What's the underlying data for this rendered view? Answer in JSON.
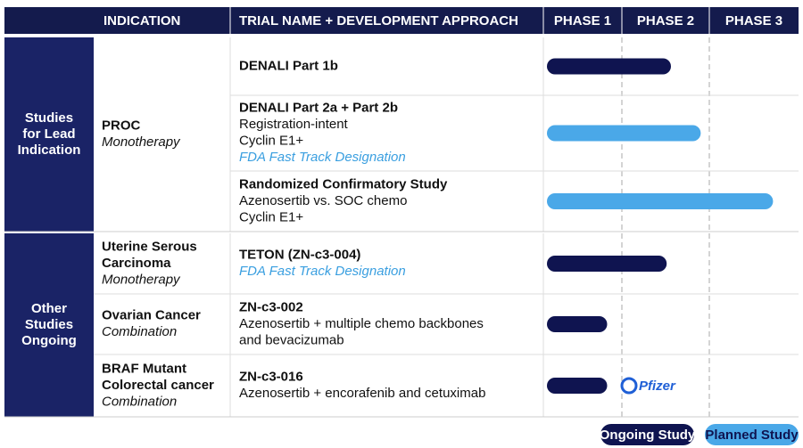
{
  "header": {
    "columns": [
      "INDICATION",
      "TRIAL NAME + DEVELOPMENT APPROACH",
      "PHASE 1",
      "PHASE 2",
      "PHASE 3"
    ]
  },
  "status_colors": {
    "ongoing": "#0f1450",
    "planned": "#4aa8e8"
  },
  "groups": [
    {
      "label": [
        "Studies",
        "for Lead",
        "Indication"
      ],
      "indications": [
        {
          "lines": [
            {
              "text": "PROC",
              "style": "bold"
            },
            {
              "text": "Monotherapy",
              "style": "italic"
            }
          ],
          "trials": [
            {
              "lines": [
                {
                  "text": "DENALI Part 1b",
                  "style": "bold"
                }
              ],
              "progress": 1.5,
              "status": "ongoing"
            },
            {
              "lines": [
                {
                  "text": "DENALI Part 2a + Part 2b",
                  "style": "bold"
                },
                {
                  "text": "Registration-intent",
                  "style": "normal"
                },
                {
                  "text": "Cyclin E1+",
                  "style": "normal"
                },
                {
                  "text": "FDA Fast Track Designation",
                  "style": "highlight"
                }
              ],
              "progress": 1.85,
              "status": "planned"
            },
            {
              "lines": [
                {
                  "text": "Randomized Confirmatory Study",
                  "style": "bold"
                },
                {
                  "text": "Azenosertib vs. SOC chemo",
                  "style": "normal"
                },
                {
                  "text": "Cyclin E1+",
                  "style": "normal"
                }
              ],
              "progress": 2.7,
              "status": "planned"
            }
          ]
        }
      ]
    },
    {
      "label": [
        "Other",
        "Studies",
        "Ongoing"
      ],
      "indications": [
        {
          "lines": [
            {
              "text": "Uterine Serous",
              "style": "bold"
            },
            {
              "text": "Carcinoma",
              "style": "bold"
            },
            {
              "text": "Monotherapy",
              "style": "italic"
            }
          ],
          "trials": [
            {
              "lines": [
                {
                  "text": "TETON (ZN-c3-004)",
                  "style": "bold"
                },
                {
                  "text": "FDA Fast Track Designation",
                  "style": "highlight"
                }
              ],
              "progress": 1.45,
              "status": "ongoing"
            }
          ]
        },
        {
          "lines": [
            {
              "text": "Ovarian Cancer",
              "style": "bold"
            },
            {
              "text": "Combination",
              "style": "italic"
            }
          ],
          "trials": [
            {
              "lines": [
                {
                  "text": "ZN-c3-002",
                  "style": "bold"
                },
                {
                  "text": "Azenosertib + multiple chemo backbones",
                  "style": "normal"
                },
                {
                  "text": "and bevacizumab",
                  "style": "normal"
                }
              ],
              "progress": 0.75,
              "status": "ongoing"
            }
          ]
        },
        {
          "lines": [
            {
              "text": "BRAF Mutant",
              "style": "bold"
            },
            {
              "text": "Colorectal cancer",
              "style": "bold"
            },
            {
              "text": "Combination",
              "style": "italic"
            }
          ],
          "trials": [
            {
              "lines": [
                {
                  "text": "ZN-c3-016",
                  "style": "bold"
                },
                {
                  "text": "Azenosertib + encorafenib and cetuximab",
                  "style": "normal"
                }
              ],
              "progress": 0.75,
              "status": "ongoing",
              "partner": "Pfizer"
            }
          ]
        }
      ]
    }
  ],
  "legend": [
    {
      "label": "Ongoing Study",
      "status": "ongoing"
    },
    {
      "label": "Planned Study",
      "status": "planned"
    }
  ]
}
